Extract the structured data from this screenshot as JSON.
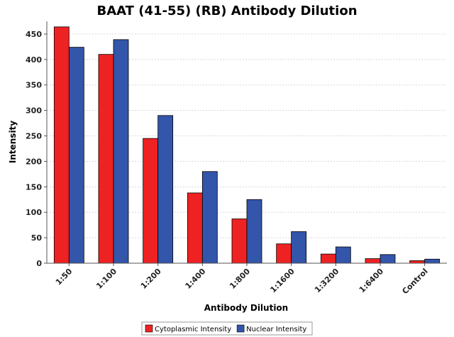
{
  "chart_data": {
    "type": "bar",
    "title": "BAAT (41-55) (RB) Antibody Dilution",
    "xlabel": "Antibody Dilution",
    "ylabel": "Intensity",
    "categories": [
      "1:50",
      "1:100",
      "1:200",
      "1:400",
      "1:800",
      "1:1600",
      "1:3200",
      "1:6400",
      "Control"
    ],
    "series": [
      {
        "name": "Cytoplasmic Intensity",
        "color": "#ee2222",
        "values": [
          464,
          410,
          245,
          138,
          87,
          38,
          18,
          9,
          5
        ]
      },
      {
        "name": "Nuclear Intensity",
        "color": "#3355aa",
        "values": [
          424,
          439,
          290,
          180,
          125,
          62,
          32,
          17,
          8
        ]
      }
    ],
    "ylim": [
      0,
      475
    ],
    "yticks": [
      0,
      50,
      100,
      150,
      200,
      250,
      300,
      350,
      400,
      450
    ],
    "grid": true,
    "legend_position": "bottom-center"
  }
}
